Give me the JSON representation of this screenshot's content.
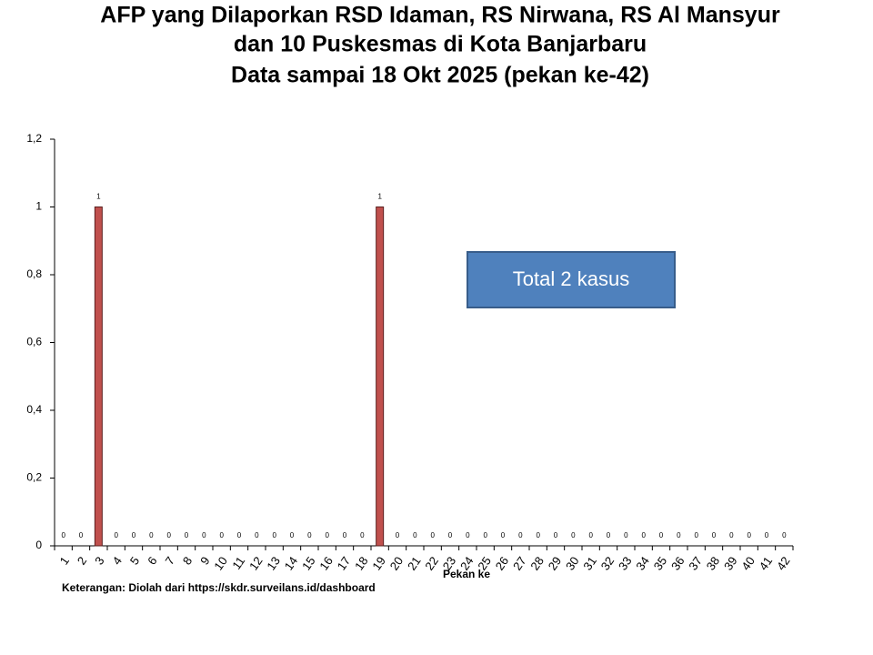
{
  "chart_data": {
    "type": "bar",
    "title": [
      "AFP yang Dilaporkan RSD Idaman, RS Nirwana, RS Al Mansyur",
      "dan 10 Puskesmas di Kota Banjarbaru",
      "Data sampai 18 Okt 2025 (pekan ke-42)"
    ],
    "x_label": "Pekan ke",
    "annotation": "Total 2 kasus",
    "note": "Keterangan: Diolah dari https://skdr.surveilans.id/dashboard",
    "categories": [
      "1",
      "2",
      "3",
      "4",
      "5",
      "6",
      "7",
      "8",
      "9",
      "10",
      "11",
      "12",
      "13",
      "14",
      "15",
      "16",
      "17",
      "18",
      "19",
      "20",
      "21",
      "22",
      "23",
      "24",
      "25",
      "26",
      "27",
      "28",
      "29",
      "30",
      "31",
      "32",
      "33",
      "34",
      "35",
      "36",
      "37",
      "38",
      "39",
      "40",
      "41",
      "42"
    ],
    "values": [
      0,
      0,
      1,
      0,
      0,
      0,
      0,
      0,
      0,
      0,
      0,
      0,
      0,
      0,
      0,
      0,
      0,
      0,
      1,
      0,
      0,
      0,
      0,
      0,
      0,
      0,
      0,
      0,
      0,
      0,
      0,
      0,
      0,
      0,
      0,
      0,
      0,
      0,
      0,
      0,
      0,
      0
    ],
    "color": "#c0504d",
    "ylim": [
      0,
      1.2
    ],
    "yticks": [
      0,
      {
        "value": 0.2,
        "label": "0,2"
      },
      {
        "value": 0.4,
        "label": "0,4"
      },
      {
        "value": 0.6,
        "label": "0,6"
      },
      {
        "value": 0.8,
        "label": "0,8"
      },
      1,
      {
        "value": 1.2,
        "label": "1,2"
      }
    ],
    "grid": false
  }
}
